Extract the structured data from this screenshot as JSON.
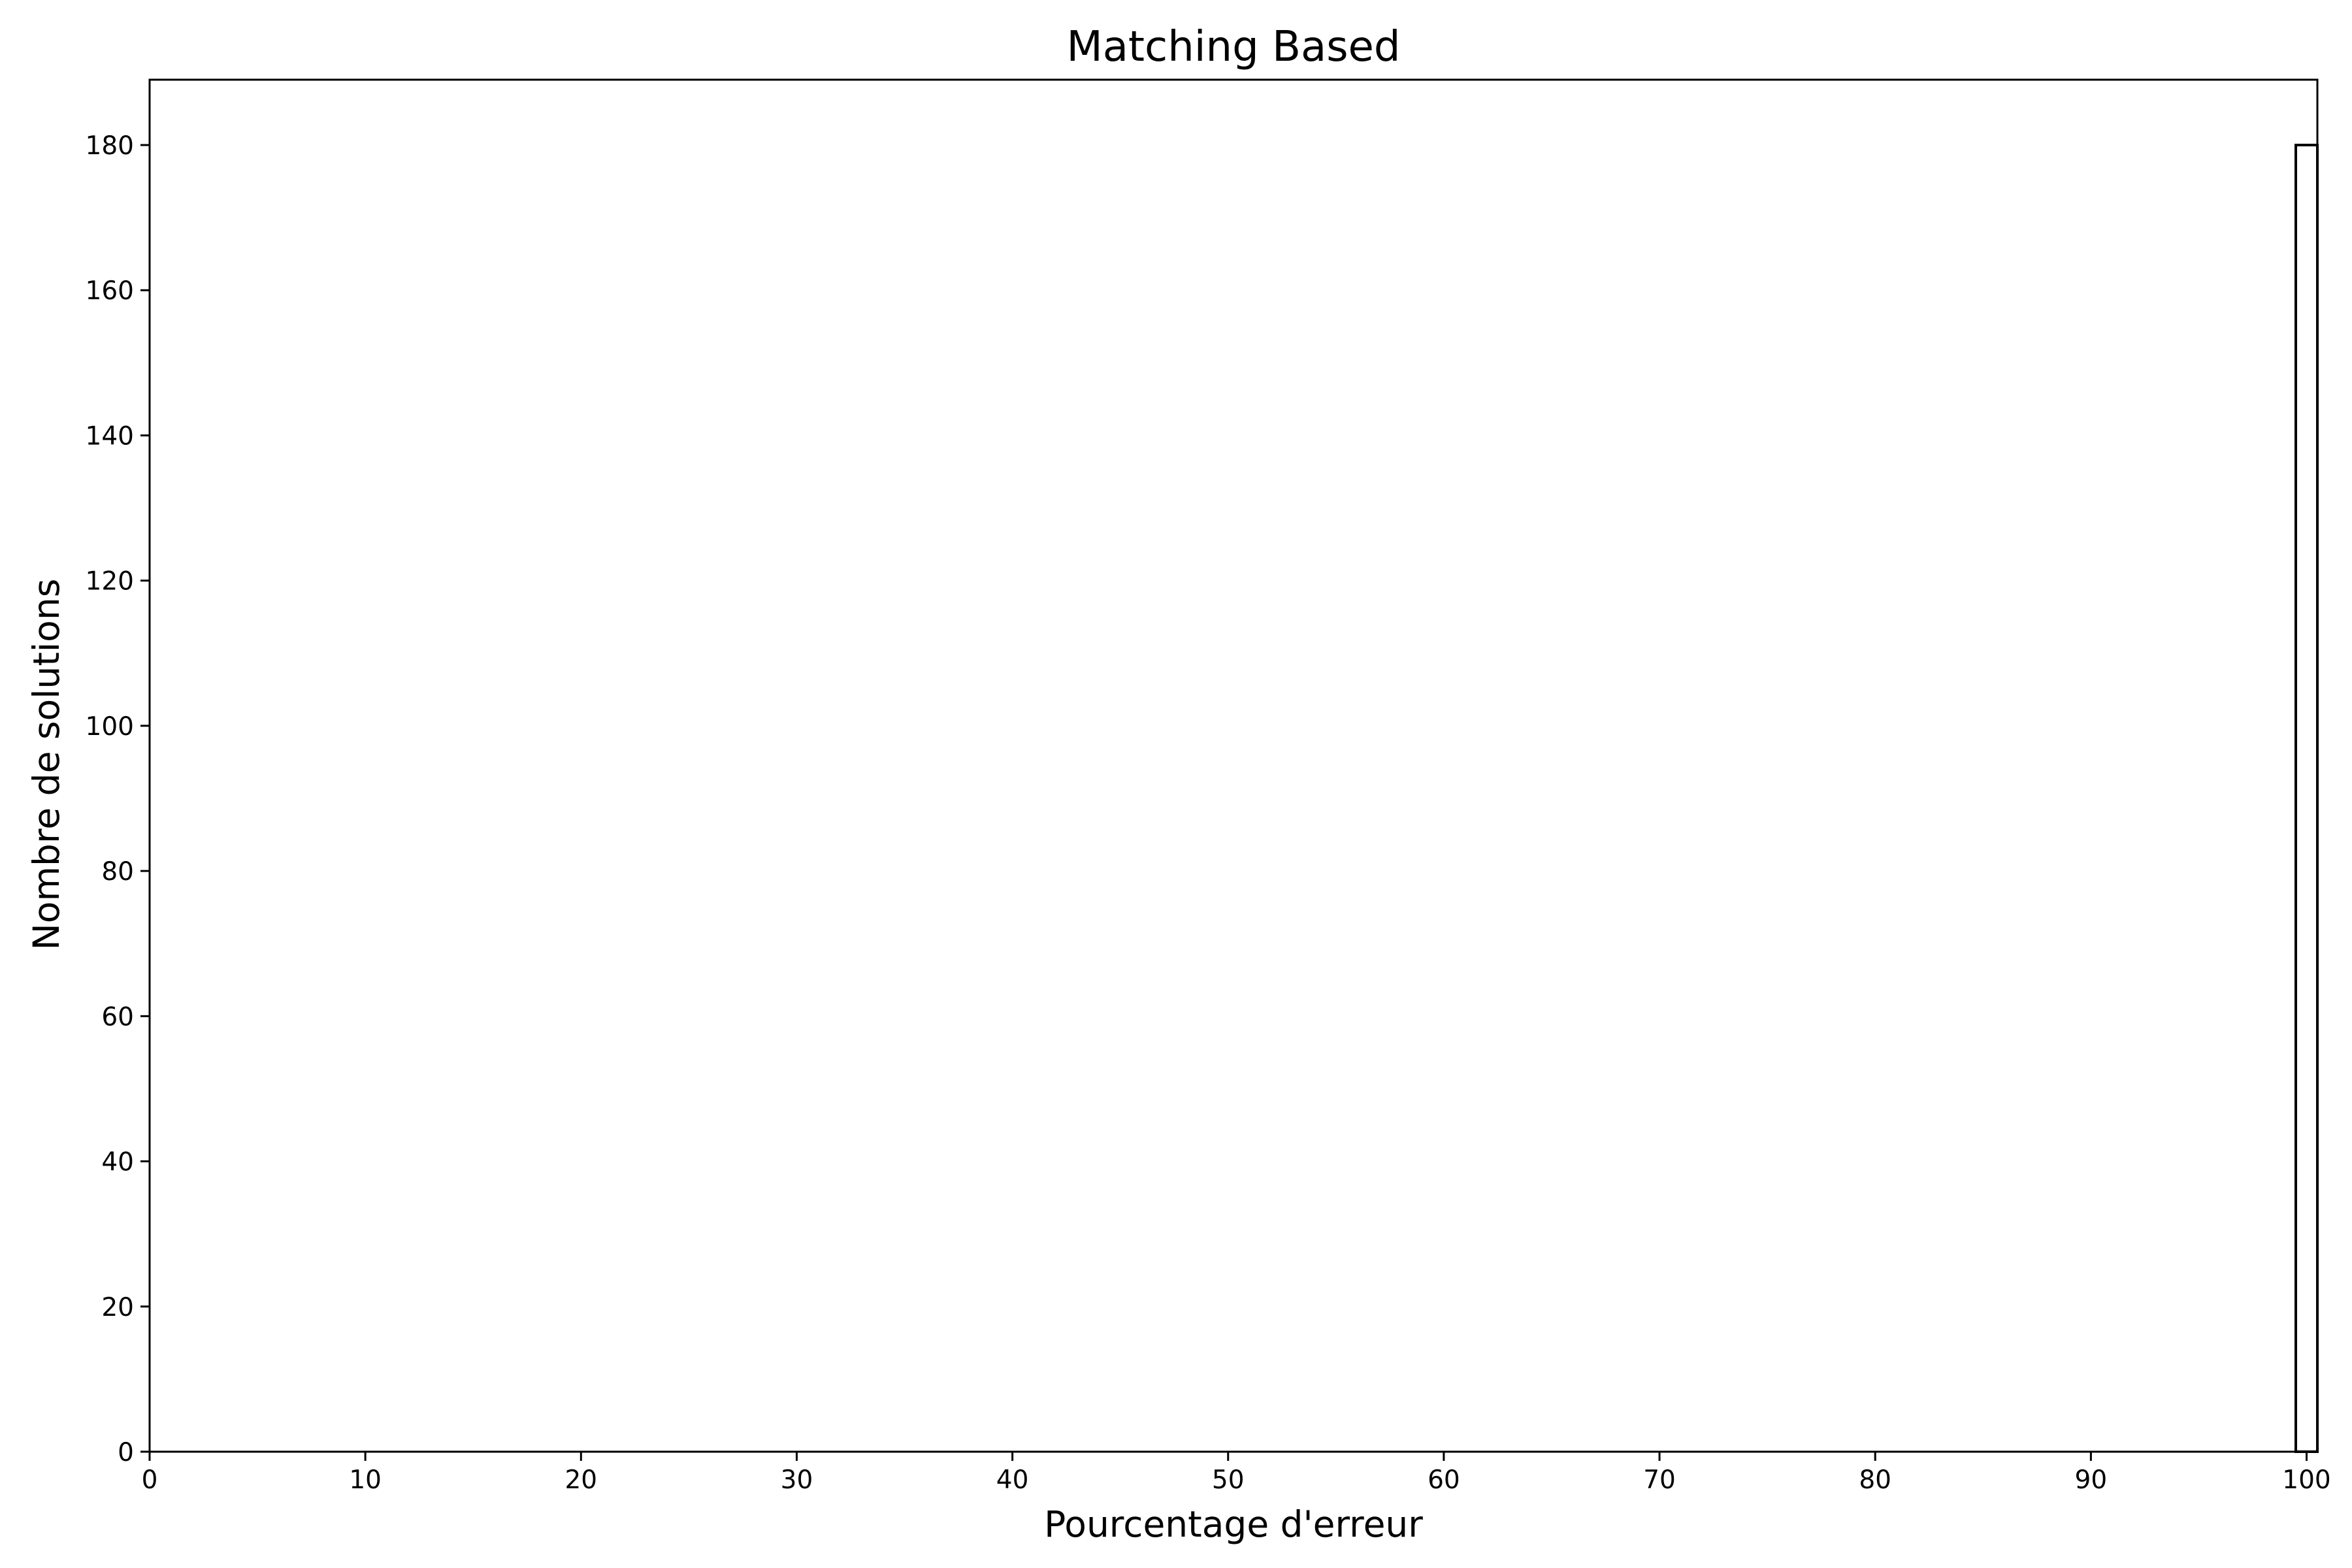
{
  "chart_data": {
    "type": "bar",
    "title": "Matching Based",
    "xlabel": "Pourcentage d'erreur",
    "ylabel": "Nombre de solutions",
    "xlim": [
      0,
      100.5
    ],
    "ylim": [
      0,
      189
    ],
    "xticks": [
      0,
      10,
      20,
      30,
      40,
      50,
      60,
      70,
      80,
      90,
      100
    ],
    "yticks": [
      0,
      20,
      40,
      60,
      80,
      100,
      120,
      140,
      160,
      180
    ],
    "bins": [
      {
        "x_start": 99.5,
        "x_end": 100.5,
        "value": 180
      }
    ],
    "bar_fill": "#ffffff",
    "bar_edge": "#000000",
    "grid": false,
    "legend": "none"
  }
}
